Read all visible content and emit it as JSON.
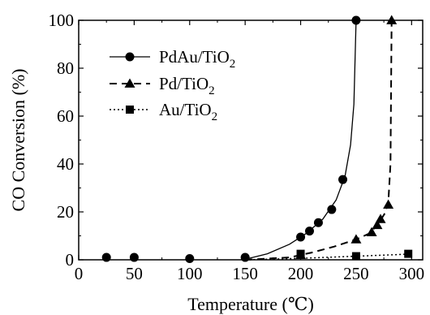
{
  "chart_data": {
    "type": "scatter",
    "xlabel": "Temperature (℃)",
    "ylabel": "CO Conversion (%)",
    "xlim": [
      0,
      310
    ],
    "ylim": [
      0,
      100
    ],
    "x_ticks": [
      "0",
      "50",
      "100",
      "150",
      "200",
      "250",
      "300"
    ],
    "y_ticks": [
      "0",
      "20",
      "40",
      "60",
      "80",
      "100"
    ],
    "grid": false,
    "legend_position": "top-left",
    "series": [
      {
        "name": "PdAu/TiO",
        "subscript": "2",
        "marker": "circle",
        "line_style": "solid",
        "points": [
          [
            25,
            1
          ],
          [
            50,
            1
          ],
          [
            100,
            0.5
          ],
          [
            150,
            1
          ],
          [
            200,
            9.5
          ],
          [
            208,
            12
          ],
          [
            216,
            15.5
          ],
          [
            228,
            21
          ],
          [
            238,
            33.5
          ],
          [
            250,
            100
          ]
        ]
      },
      {
        "name": "Pd/TiO",
        "subscript": "2",
        "marker": "triangle",
        "line_style": "dashed",
        "points": [
          [
            200,
            2
          ],
          [
            250,
            8.5
          ],
          [
            264,
            11.5
          ],
          [
            269,
            14.5
          ],
          [
            272,
            17
          ],
          [
            279,
            23
          ],
          [
            282,
            100
          ]
        ]
      },
      {
        "name": "Au/TiO",
        "subscript": "2",
        "marker": "square",
        "line_style": "dotted",
        "points": [
          [
            200,
            2.5
          ],
          [
            250,
            1.5
          ],
          [
            297,
            2.5
          ]
        ]
      }
    ],
    "fit_curves": [
      {
        "series": 0,
        "points": [
          [
            150,
            0.2
          ],
          [
            170,
            2.5
          ],
          [
            190,
            6.5
          ],
          [
            205,
            11
          ],
          [
            220,
            17
          ],
          [
            232,
            25
          ],
          [
            240,
            35
          ],
          [
            245,
            48
          ],
          [
            248,
            65
          ],
          [
            250,
            100
          ]
        ]
      },
      {
        "series": 1,
        "points": [
          [
            150,
            0
          ],
          [
            190,
            1
          ],
          [
            210,
            3
          ],
          [
            230,
            5.5
          ],
          [
            250,
            8.5
          ],
          [
            262,
            11
          ],
          [
            270,
            15
          ],
          [
            276,
            19.5
          ],
          [
            279,
            24
          ],
          [
            281,
            40
          ],
          [
            282,
            100
          ]
        ]
      },
      {
        "series": 2,
        "points": [
          [
            150,
            0
          ],
          [
            200,
            0.6
          ],
          [
            250,
            1.5
          ],
          [
            300,
            2.4
          ]
        ]
      }
    ]
  }
}
